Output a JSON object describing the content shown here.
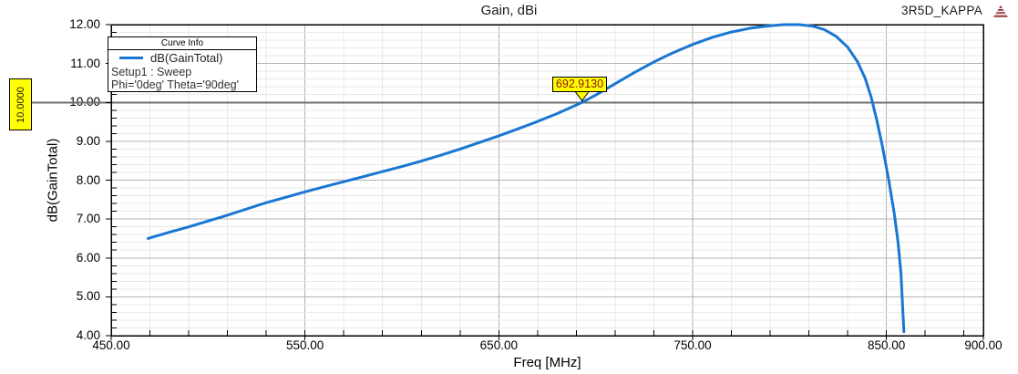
{
  "header": {
    "title": "Gain, dBi",
    "watermark": "3R5D_KAPPA"
  },
  "legend": {
    "title": "Curve Info",
    "series_label": "dB(GainTotal)",
    "setup_line": "Setup1 : Sweep",
    "param_line": "Phi='0deg' Theta='90deg'"
  },
  "chart_data": {
    "type": "line",
    "title": "Gain, dBi",
    "xlabel": "Freq [MHz]",
    "ylabel": "dB(GainTotal)",
    "xlim": [
      450,
      900
    ],
    "ylim": [
      4,
      12
    ],
    "x_major_ticks": [
      450,
      550,
      650,
      750,
      850,
      900
    ],
    "x_tick_labels": [
      "450.00",
      "550.00",
      "650.00",
      "750.00",
      "850.00",
      "900.00"
    ],
    "y_major_ticks": [
      4,
      5,
      6,
      7,
      8,
      9,
      10,
      11,
      12
    ],
    "y_tick_labels": [
      "4.00",
      "5.00",
      "6.00",
      "7.00",
      "8.00",
      "9.00",
      "10.00",
      "11.00",
      "12.00"
    ],
    "x_minor_step": 20,
    "y_minor_step": 0.2,
    "grid": true,
    "legend_position": "top-left",
    "ref_line": {
      "y": 10.0,
      "label": "10.0000"
    },
    "marker": {
      "x": 692.913,
      "y": 10.0,
      "label": "692.9130"
    },
    "accent_colors": {
      "curve": "#1976d2",
      "marker_bg": "#ffff00",
      "marker_text": "#8b1212",
      "ref_line": "#6f6f6f"
    },
    "series": [
      {
        "name": "dB(GainTotal)",
        "color": "#1976d2",
        "points": [
          [
            469,
            6.5
          ],
          [
            480,
            6.66
          ],
          [
            490,
            6.8
          ],
          [
            500,
            6.95
          ],
          [
            510,
            7.1
          ],
          [
            520,
            7.26
          ],
          [
            530,
            7.42
          ],
          [
            540,
            7.56
          ],
          [
            550,
            7.7
          ],
          [
            560,
            7.83
          ],
          [
            570,
            7.96
          ],
          [
            580,
            8.09
          ],
          [
            590,
            8.22
          ],
          [
            600,
            8.35
          ],
          [
            610,
            8.49
          ],
          [
            620,
            8.64
          ],
          [
            630,
            8.8
          ],
          [
            640,
            8.97
          ],
          [
            650,
            9.14
          ],
          [
            660,
            9.32
          ],
          [
            670,
            9.51
          ],
          [
            680,
            9.71
          ],
          [
            692.9,
            10.0
          ],
          [
            700,
            10.19
          ],
          [
            710,
            10.48
          ],
          [
            720,
            10.77
          ],
          [
            730,
            11.04
          ],
          [
            740,
            11.28
          ],
          [
            750,
            11.49
          ],
          [
            760,
            11.67
          ],
          [
            770,
            11.81
          ],
          [
            780,
            11.91
          ],
          [
            790,
            11.97
          ],
          [
            797,
            12.0
          ],
          [
            805,
            12.0
          ],
          [
            812,
            11.96
          ],
          [
            818,
            11.87
          ],
          [
            824,
            11.7
          ],
          [
            830,
            11.42
          ],
          [
            835,
            11.05
          ],
          [
            839,
            10.62
          ],
          [
            842,
            10.15
          ],
          [
            845,
            9.55
          ],
          [
            848,
            8.85
          ],
          [
            851,
            8.05
          ],
          [
            854,
            7.15
          ],
          [
            856,
            6.4
          ],
          [
            857.5,
            5.6
          ],
          [
            859,
            4.1
          ]
        ]
      }
    ]
  }
}
